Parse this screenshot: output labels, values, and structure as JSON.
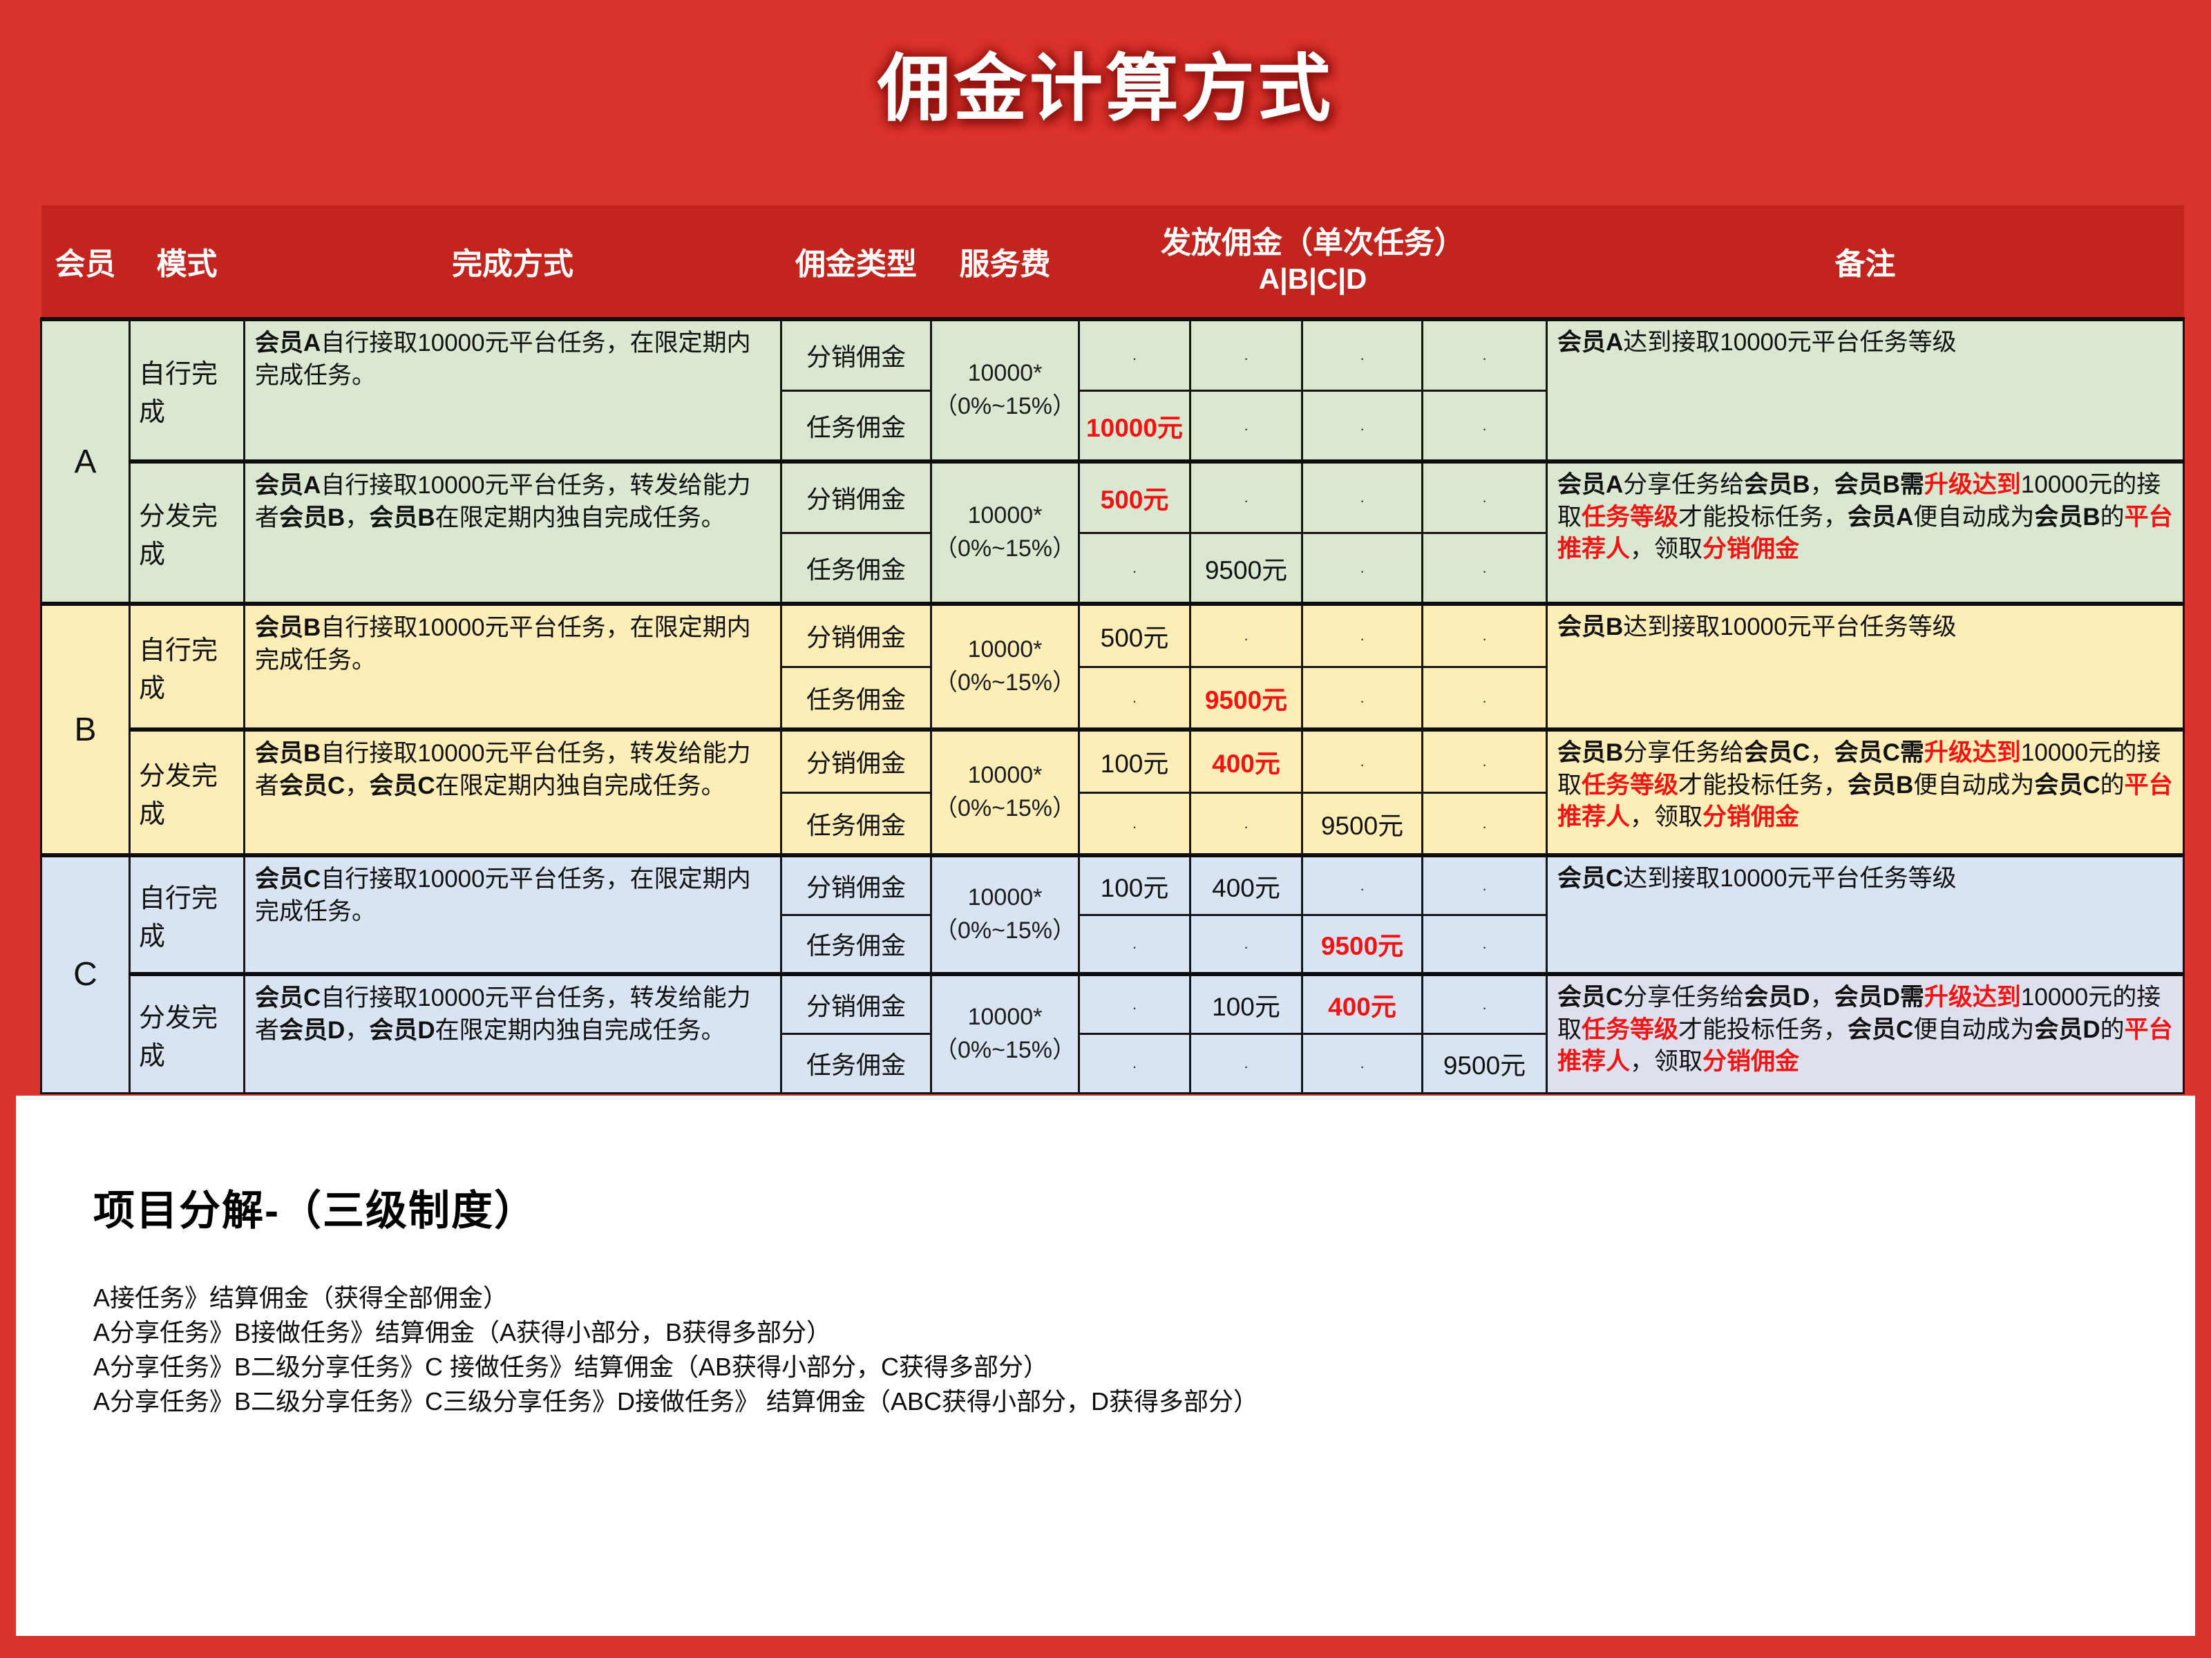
{
  "page": {
    "title": "佣金计算方式"
  },
  "colors": {
    "page_red": "#DB332D",
    "header_band_red": "#C3241E",
    "section_a_green": "#DAE8D2",
    "section_b_cream": "#FDEDB7",
    "section_c_blue": "#D8E4F1",
    "highlight_red": "#F31313"
  },
  "table": {
    "headers": {
      "member": "会员",
      "mode": "模式",
      "method": "完成方式",
      "commission_type": "佣金类型",
      "service_fee": "服务费",
      "payout": "发放佣金（单次任务）",
      "payout_sub": "A|B|C|D",
      "remark": "备注"
    },
    "fee_line1": "10000*",
    "fee_line2": "（0%~15%）",
    "sections": [
      {
        "member": "A",
        "modes": [
          {
            "mode": "自行完成",
            "method": [
              {
                "t": "会员A",
                "b": 1
              },
              {
                "t": "自行接取10000元平台任务，在限定期内完成任务。"
              }
            ],
            "remark": [
              {
                "t": "会员A",
                "b": 1
              },
              {
                "t": "达到接取10000元平台任务等级"
              }
            ],
            "rows": [
              {
                "type": "分销佣金",
                "values": [
                  [
                    {
                      "t": "·",
                      "d": 1
                    }
                  ],
                  [
                    {
                      "t": "·",
                      "d": 1
                    }
                  ],
                  [
                    {
                      "t": "·",
                      "d": 1
                    }
                  ],
                  [
                    {
                      "t": "·",
                      "d": 1
                    }
                  ]
                ]
              },
              {
                "type": "任务佣金",
                "values": [
                  [
                    {
                      "t": "10000元",
                      "r": 1
                    }
                  ],
                  [
                    {
                      "t": "·",
                      "d": 1
                    }
                  ],
                  [
                    {
                      "t": "·",
                      "d": 1
                    }
                  ],
                  [
                    {
                      "t": "·",
                      "d": 1
                    }
                  ]
                ]
              }
            ]
          },
          {
            "mode": "分发完成",
            "method": [
              {
                "t": "会员A",
                "b": 1
              },
              {
                "t": "自行接取10000元平台任务，转发给能力者"
              },
              {
                "t": "会员B",
                "b": 1
              },
              {
                "t": "，"
              },
              {
                "t": "会员B",
                "b": 1
              },
              {
                "t": "在限定期内独自完成任务。"
              }
            ],
            "remark": [
              {
                "t": "会员A",
                "b": 1
              },
              {
                "t": "分享任务给"
              },
              {
                "t": "会员B",
                "b": 1
              },
              {
                "t": "，"
              },
              {
                "t": "会员B需",
                "b": 1
              },
              {
                "t": "升级达到",
                "r": 1
              },
              {
                "t": "10000元的接取"
              },
              {
                "t": "任务等级",
                "r": 1
              },
              {
                "t": "才能投标任务，"
              },
              {
                "t": "会员A",
                "b": 1
              },
              {
                "t": "便自动成为"
              },
              {
                "t": "会员B",
                "b": 1
              },
              {
                "t": "的"
              },
              {
                "t": "平台推荐人",
                "r": 1
              },
              {
                "t": "，领取"
              },
              {
                "t": "分销佣金",
                "r": 1
              }
            ],
            "rows": [
              {
                "type": "分销佣金",
                "values": [
                  [
                    {
                      "t": "500元",
                      "r": 1
                    }
                  ],
                  [
                    {
                      "t": "·",
                      "d": 1
                    }
                  ],
                  [
                    {
                      "t": "·",
                      "d": 1
                    }
                  ],
                  [
                    {
                      "t": "·",
                      "d": 1
                    }
                  ]
                ]
              },
              {
                "type": "任务佣金",
                "values": [
                  [
                    {
                      "t": "·",
                      "d": 1
                    }
                  ],
                  [
                    {
                      "t": "9500元"
                    }
                  ],
                  [
                    {
                      "t": "·",
                      "d": 1
                    }
                  ],
                  [
                    {
                      "t": "·",
                      "d": 1
                    }
                  ]
                ]
              }
            ]
          }
        ]
      },
      {
        "member": "B",
        "modes": [
          {
            "mode": "自行完成",
            "method": [
              {
                "t": "会员B",
                "b": 1
              },
              {
                "t": "自行接取10000元平台任务，在限定期内完成任务。"
              }
            ],
            "remark": [
              {
                "t": "会员B",
                "b": 1
              },
              {
                "t": "达到接取10000元平台任务等级"
              }
            ],
            "rows": [
              {
                "type": "分销佣金",
                "values": [
                  [
                    {
                      "t": "500元"
                    }
                  ],
                  [
                    {
                      "t": "·",
                      "d": 1
                    }
                  ],
                  [
                    {
                      "t": "·",
                      "d": 1
                    }
                  ],
                  [
                    {
                      "t": "·",
                      "d": 1
                    }
                  ]
                ]
              },
              {
                "type": "任务佣金",
                "values": [
                  [
                    {
                      "t": "·",
                      "d": 1
                    }
                  ],
                  [
                    {
                      "t": "9500元",
                      "r": 1
                    }
                  ],
                  [
                    {
                      "t": "·",
                      "d": 1
                    }
                  ],
                  [
                    {
                      "t": "·",
                      "d": 1
                    }
                  ]
                ]
              }
            ]
          },
          {
            "mode": "分发完成",
            "method": [
              {
                "t": "会员B",
                "b": 1
              },
              {
                "t": "自行接取10000元平台任务，转发给能力者"
              },
              {
                "t": "会员C",
                "b": 1
              },
              {
                "t": "，"
              },
              {
                "t": "会员C",
                "b": 1
              },
              {
                "t": "在限定期内独自完成任务。"
              }
            ],
            "remark": [
              {
                "t": "会员B",
                "b": 1
              },
              {
                "t": "分享任务给"
              },
              {
                "t": "会员C",
                "b": 1
              },
              {
                "t": "，"
              },
              {
                "t": "会员C需",
                "b": 1
              },
              {
                "t": "升级达到",
                "r": 1
              },
              {
                "t": "10000元的接取"
              },
              {
                "t": "任务等级",
                "r": 1
              },
              {
                "t": "才能投标任务，"
              },
              {
                "t": "会员B",
                "b": 1
              },
              {
                "t": "便自动成为"
              },
              {
                "t": "会员C",
                "b": 1
              },
              {
                "t": "的"
              },
              {
                "t": "平台推荐人",
                "r": 1
              },
              {
                "t": "，领取"
              },
              {
                "t": "分销佣金",
                "r": 1
              }
            ],
            "rows": [
              {
                "type": "分销佣金",
                "values": [
                  [
                    {
                      "t": "100元"
                    }
                  ],
                  [
                    {
                      "t": "400元",
                      "r": 1
                    }
                  ],
                  [
                    {
                      "t": "·",
                      "d": 1
                    }
                  ],
                  [
                    {
                      "t": "·",
                      "d": 1
                    }
                  ]
                ]
              },
              {
                "type": "任务佣金",
                "values": [
                  [
                    {
                      "t": "·",
                      "d": 1
                    }
                  ],
                  [
                    {
                      "t": "·",
                      "d": 1
                    }
                  ],
                  [
                    {
                      "t": "9500元"
                    }
                  ],
                  [
                    {
                      "t": "·",
                      "d": 1
                    }
                  ]
                ]
              }
            ]
          }
        ]
      },
      {
        "member": "C",
        "modes": [
          {
            "mode": "自行完成",
            "method": [
              {
                "t": "会员C",
                "b": 1
              },
              {
                "t": "自行接取10000元平台任务，在限定期内完成任务。"
              }
            ],
            "remark": [
              {
                "t": "会员C",
                "b": 1
              },
              {
                "t": "达到接取10000元平台任务等级"
              }
            ],
            "rows": [
              {
                "type": "分销佣金",
                "values": [
                  [
                    {
                      "t": "100元"
                    }
                  ],
                  [
                    {
                      "t": "400元"
                    }
                  ],
                  [
                    {
                      "t": "·",
                      "d": 1
                    }
                  ],
                  [
                    {
                      "t": "·",
                      "d": 1
                    }
                  ]
                ]
              },
              {
                "type": "任务佣金",
                "values": [
                  [
                    {
                      "t": "·",
                      "d": 1
                    }
                  ],
                  [
                    {
                      "t": "·",
                      "d": 1
                    }
                  ],
                  [
                    {
                      "t": "9500元",
                      "r": 1
                    }
                  ],
                  [
                    {
                      "t": "·",
                      "d": 1
                    }
                  ]
                ]
              }
            ]
          },
          {
            "mode": "分发完成",
            "method": [
              {
                "t": "会员C",
                "b": 1
              },
              {
                "t": "自行接取10000元平台任务，转发给能力者"
              },
              {
                "t": "会员D",
                "b": 1
              },
              {
                "t": "，"
              },
              {
                "t": "会员D",
                "b": 1
              },
              {
                "t": "在限定期内独自完成任务。"
              }
            ],
            "remark": [
              {
                "t": "会员C",
                "b": 1
              },
              {
                "t": "分享任务给"
              },
              {
                "t": "会员D",
                "b": 1
              },
              {
                "t": "，"
              },
              {
                "t": "会员D需",
                "b": 1
              },
              {
                "t": "升级达到",
                "r": 1
              },
              {
                "t": "10000元的接取"
              },
              {
                "t": "任务等级",
                "r": 1
              },
              {
                "t": "才能投标任务，"
              },
              {
                "t": "会员C",
                "b": 1
              },
              {
                "t": "便自动成为"
              },
              {
                "t": "会员D",
                "b": 1
              },
              {
                "t": "的"
              },
              {
                "t": "平台推荐人",
                "r": 1
              },
              {
                "t": "，领取"
              },
              {
                "t": "分销佣金",
                "r": 1
              }
            ],
            "rows": [
              {
                "type": "分销佣金",
                "values": [
                  [
                    {
                      "t": "·",
                      "d": 1
                    }
                  ],
                  [
                    {
                      "t": "100元"
                    }
                  ],
                  [
                    {
                      "t": "400元",
                      "r": 1
                    }
                  ],
                  [
                    {
                      "t": "·",
                      "d": 1
                    }
                  ]
                ]
              },
              {
                "type": "任务佣金",
                "values": [
                  [
                    {
                      "t": "·",
                      "d": 1
                    }
                  ],
                  [
                    {
                      "t": "·",
                      "d": 1
                    }
                  ],
                  [
                    {
                      "t": "·",
                      "d": 1
                    }
                  ],
                  [
                    {
                      "t": "9500元"
                    }
                  ]
                ]
              }
            ]
          }
        ]
      }
    ]
  },
  "footer": {
    "heading": "项目分解-（三级制度）",
    "lines": [
      "A接任务》结算佣金（获得全部佣金）",
      "A分享任务》B接做任务》结算佣金（A获得小部分，B获得多部分）",
      "A分享任务》B二级分享任务》C 接做任务》结算佣金（AB获得小部分，C获得多部分）",
      "A分享任务》B二级分享任务》C三级分享任务》D接做任务》 结算佣金（ABC获得小部分，D获得多部分）"
    ]
  }
}
